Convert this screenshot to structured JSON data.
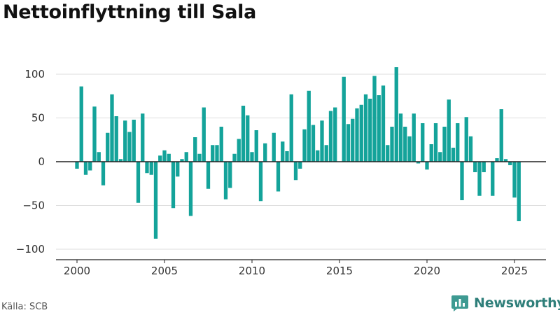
{
  "header": {
    "title": "Nettoinflyttning till Sala"
  },
  "footer": {
    "source": "Källa: SCB",
    "brand": "Newsworthy",
    "brand_icon": "bar-chart-speech-bubble-icon"
  },
  "colors": {
    "bar": "#14a39a",
    "grid": "#dddddd",
    "zero_line": "#222222",
    "brand": "#2f7f7a"
  },
  "chart_data": {
    "type": "bar",
    "title": "Nettoinflyttning till Sala",
    "xlabel": "",
    "ylabel": "",
    "ylim": [
      -100,
      110
    ],
    "yticks": [
      -100,
      -50,
      0,
      50,
      100
    ],
    "ytick_labels": [
      "−100",
      "−50",
      "0",
      "50",
      "100"
    ],
    "xlim": [
      1999.0,
      2026.75
    ],
    "xticks": [
      2000,
      2005,
      2010,
      2015,
      2020,
      2025
    ],
    "xtick_labels": [
      "2000",
      "2005",
      "2010",
      "2015",
      "2020",
      "2025"
    ],
    "grid": true,
    "legend": "none",
    "x_start": 2000,
    "period": "quarter",
    "values": [
      -8,
      86,
      -15,
      -10,
      63,
      11,
      -27,
      33,
      77,
      52,
      3,
      47,
      34,
      48,
      -47,
      55,
      -13,
      -15,
      -88,
      7,
      13,
      9,
      -53,
      -17,
      3,
      11,
      -62,
      28,
      9,
      62,
      -31,
      19,
      19,
      40,
      -43,
      -30,
      9,
      26,
      64,
      53,
      11,
      36,
      -45,
      21,
      0,
      33,
      -34,
      23,
      12,
      77,
      -21,
      -8,
      37,
      81,
      42,
      13,
      47,
      19,
      58,
      62,
      0,
      97,
      43,
      49,
      61,
      65,
      77,
      72,
      98,
      76,
      87,
      19,
      40,
      108,
      55,
      40,
      29,
      55,
      -2,
      44,
      -9,
      20,
      44,
      11,
      40,
      71,
      16,
      44,
      -44,
      51,
      29,
      -12,
      -39,
      -12,
      0,
      -39,
      4,
      60,
      3,
      -4,
      -41,
      -68
    ]
  }
}
